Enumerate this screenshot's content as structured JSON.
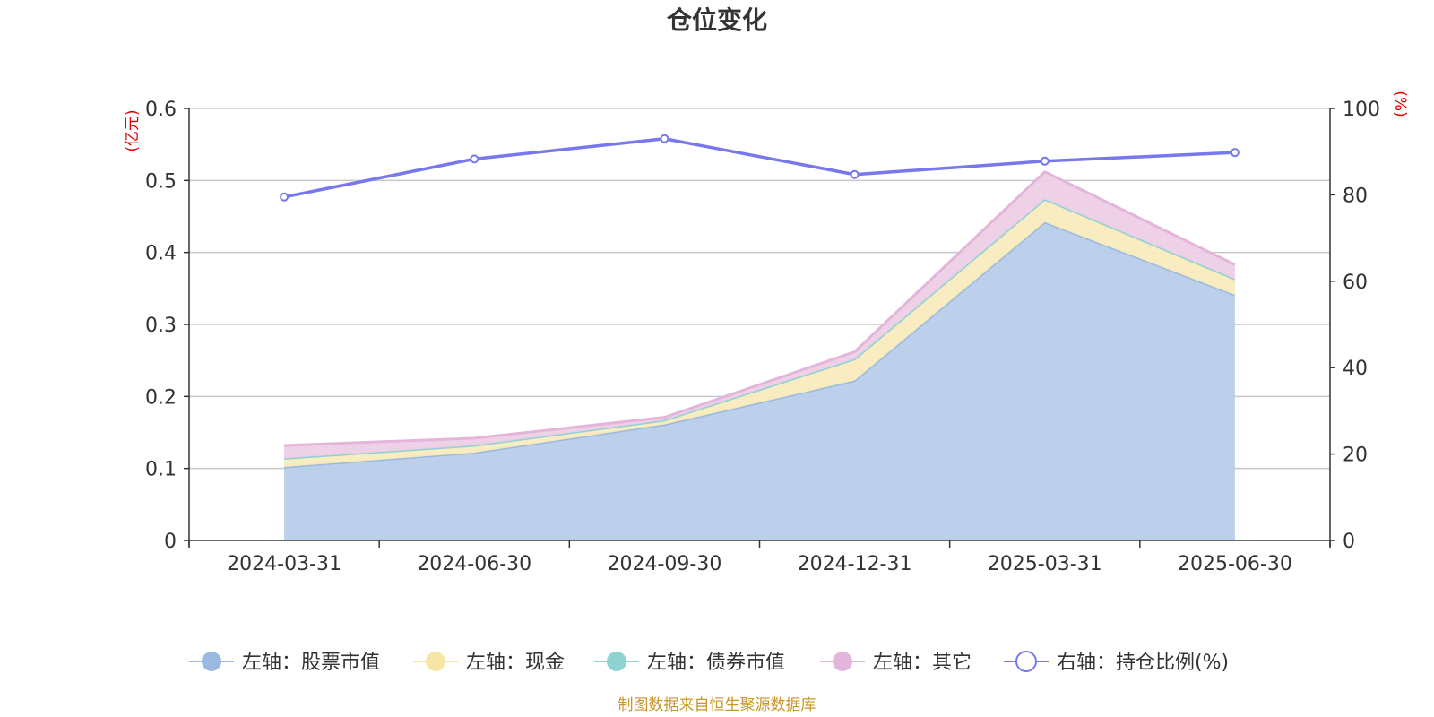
{
  "chart_data": {
    "type": "area",
    "title": "仓位变化",
    "categories": [
      "2024-03-31",
      "2024-06-30",
      "2024-09-30",
      "2024-12-31",
      "2025-03-31",
      "2025-06-30"
    ],
    "left_axis": {
      "unit": "(亿元)",
      "ylim": [
        0,
        0.6
      ],
      "ticks": [
        "0",
        "0.1",
        "0.2",
        "0.3",
        "0.4",
        "0.5",
        "0.6"
      ]
    },
    "right_axis": {
      "unit": "(%)",
      "ylim": [
        0,
        100
      ],
      "ticks": [
        "0",
        "20",
        "40",
        "60",
        "80",
        "100"
      ]
    },
    "series": [
      {
        "name": "左轴：股票市值",
        "axis": "left",
        "stacked": true,
        "values": [
          0.102,
          0.122,
          0.161,
          0.222,
          0.442,
          0.341
        ],
        "color": "#9bb9e0",
        "fill": "#b8cdea"
      },
      {
        "name": "左轴：现金",
        "axis": "left",
        "stacked": true,
        "values": [
          0.012,
          0.01,
          0.006,
          0.03,
          0.032,
          0.022
        ],
        "color": "#f6e6a6",
        "fill": "#f8ebbd"
      },
      {
        "name": "左轴：债券市值",
        "axis": "left",
        "stacked": true,
        "values": [
          0,
          0,
          0,
          0,
          0,
          0
        ],
        "color": "#8fd2d2",
        "fill": "#b4e2e2"
      },
      {
        "name": "左轴：其它",
        "axis": "left",
        "stacked": true,
        "values": [
          0.018,
          0.01,
          0.004,
          0.01,
          0.038,
          0.02
        ],
        "color": "#e4b5da",
        "fill": "#eecfe6"
      },
      {
        "name": "右轴：持仓比例(%)",
        "axis": "right",
        "type": "line",
        "values": [
          79.5,
          88.3,
          93.0,
          84.7,
          87.8,
          89.8
        ],
        "color": "#7777ee"
      }
    ],
    "source": "制图数据来自恒生聚源数据库"
  }
}
